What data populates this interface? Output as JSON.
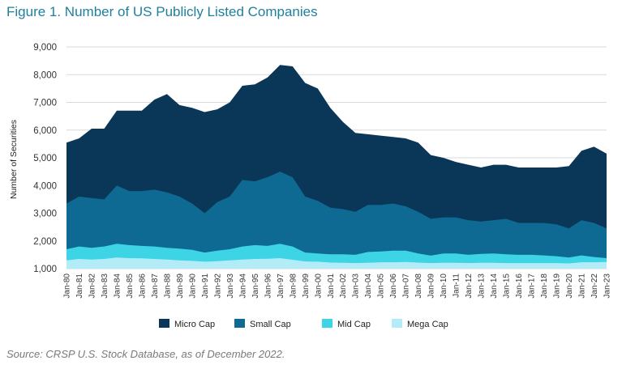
{
  "figure_title": "Figure 1. Number of US Publicly Listed Companies",
  "source_note": "Source: CRSP U.S. Stock Database, as of December 2022.",
  "chart_data": {
    "type": "area",
    "stacked": true,
    "title": "Figure 1. Number of US Publicly Listed Companies",
    "xlabel": "",
    "ylabel": "Number of Securities",
    "ylim": [
      1000,
      9000
    ],
    "yticks": [
      1000,
      2000,
      3000,
      4000,
      5000,
      6000,
      7000,
      8000,
      9000
    ],
    "ytick_labels": [
      "1,000",
      "2,000",
      "3,000",
      "4,000",
      "5,000",
      "6,000",
      "7,000",
      "8,000",
      "9,000"
    ],
    "grid": "horizontal",
    "legend_position": "bottom",
    "x": [
      "Jan-80",
      "Jan-81",
      "Jan-82",
      "Jan-83",
      "Jan-84",
      "Jan-85",
      "Jan-86",
      "Jan-87",
      "Jan-88",
      "Jan-89",
      "Jan-90",
      "Jan-91",
      "Jan-92",
      "Jan-93",
      "Jan-94",
      "Jan-95",
      "Jan-96",
      "Jan-97",
      "Jan-98",
      "Jan-99",
      "Jan-00",
      "Jan-01",
      "Jan-02",
      "Jan-03",
      "Jan-04",
      "Jan-05",
      "Jan-06",
      "Jan-07",
      "Jan-08",
      "Jan-09",
      "Jan-10",
      "Jan-11",
      "Jan-12",
      "Jan-13",
      "Jan-14",
      "Jan-15",
      "Jan-16",
      "Jan-17",
      "Jan-18",
      "Jan-19",
      "Jan-20",
      "Jan-21",
      "Jan-22",
      "Jan-23"
    ],
    "series": [
      {
        "name": "Mega Cap",
        "color": "#b3ecf7",
        "values": [
          1300,
          1350,
          1330,
          1350,
          1400,
          1380,
          1370,
          1350,
          1330,
          1300,
          1280,
          1250,
          1270,
          1300,
          1330,
          1350,
          1360,
          1380,
          1320,
          1260,
          1250,
          1220,
          1210,
          1200,
          1210,
          1230,
          1230,
          1240,
          1220,
          1200,
          1210,
          1210,
          1200,
          1210,
          1210,
          1200,
          1200,
          1200,
          1200,
          1200,
          1190,
          1230,
          1230,
          1240
        ]
      },
      {
        "name": "Mid Cap",
        "color": "#3dd4e6",
        "values": [
          1700,
          1800,
          1750,
          1800,
          1900,
          1850,
          1820,
          1800,
          1750,
          1720,
          1680,
          1580,
          1650,
          1700,
          1800,
          1850,
          1820,
          1900,
          1800,
          1580,
          1550,
          1520,
          1520,
          1500,
          1600,
          1620,
          1650,
          1650,
          1550,
          1470,
          1550,
          1550,
          1500,
          1530,
          1550,
          1520,
          1500,
          1500,
          1480,
          1450,
          1400,
          1480,
          1420,
          1380
        ]
      },
      {
        "name": "Small Cap",
        "color": "#0e6a92",
        "values": [
          3350,
          3600,
          3550,
          3500,
          4000,
          3800,
          3800,
          3850,
          3750,
          3600,
          3350,
          3000,
          3400,
          3600,
          4200,
          4150,
          4300,
          4500,
          4300,
          3600,
          3450,
          3200,
          3150,
          3050,
          3300,
          3300,
          3350,
          3250,
          3050,
          2800,
          2850,
          2850,
          2750,
          2700,
          2750,
          2800,
          2650,
          2650,
          2650,
          2600,
          2450,
          2750,
          2650,
          2450
        ]
      },
      {
        "name": "Micro Cap",
        "color": "#0a3658",
        "values": [
          5550,
          5700,
          6050,
          6050,
          6700,
          6700,
          6700,
          7100,
          7300,
          6900,
          6800,
          6650,
          6750,
          7000,
          7600,
          7650,
          7900,
          8350,
          8300,
          7700,
          7500,
          6800,
          6300,
          5900,
          5850,
          5800,
          5750,
          5700,
          5550,
          5100,
          5000,
          4850,
          4750,
          4650,
          4750,
          4750,
          4650,
          4650,
          4650,
          4650,
          4700,
          5250,
          5400,
          5150
        ]
      }
    ]
  }
}
